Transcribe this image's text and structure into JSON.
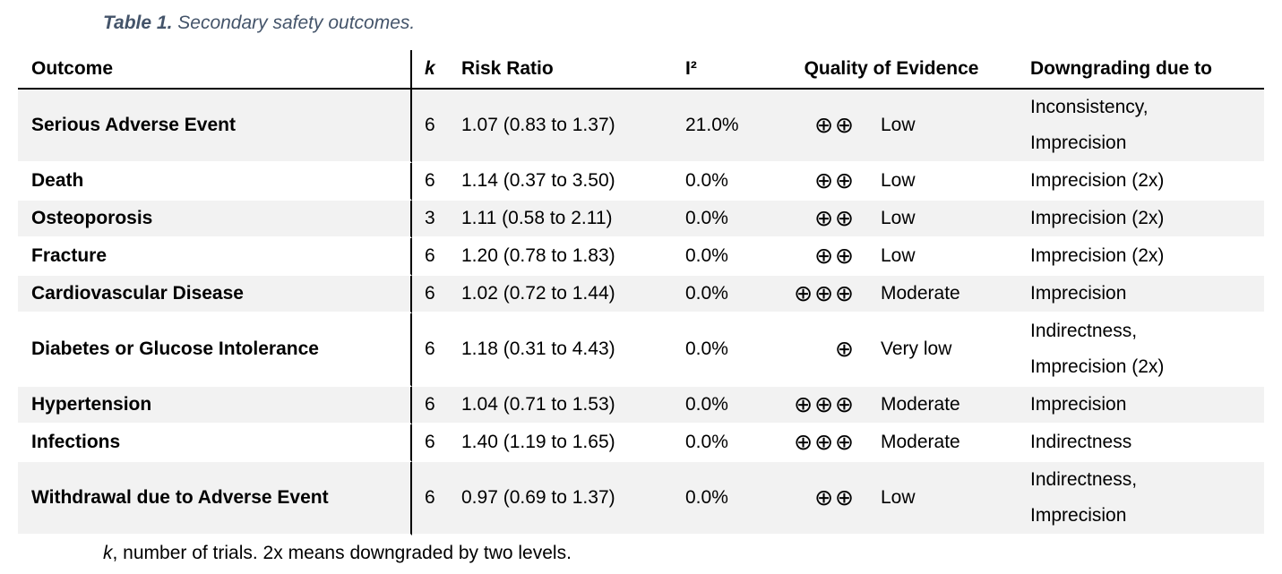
{
  "caption": {
    "label": "Table 1.",
    "text": " Secondary safety outcomes."
  },
  "table": {
    "columns": {
      "outcome": "Outcome",
      "k": "k",
      "risk_ratio": "Risk Ratio",
      "i2": "I²",
      "quality": "Quality of Evidence",
      "downgrading": "Downgrading due to"
    },
    "rows": [
      {
        "outcome": "Serious Adverse Event",
        "k": "6",
        "risk_ratio": "1.07 (0.83 to 1.37)",
        "i2": "21.0%",
        "quality_symbols": "⊕⊕",
        "quality_label": "Low",
        "downgrading_1": "Inconsistency,",
        "downgrading_2": "Imprecision"
      },
      {
        "outcome": "Death",
        "k": "6",
        "risk_ratio": "1.14 (0.37 to 3.50)",
        "i2": "0.0%",
        "quality_symbols": "⊕⊕",
        "quality_label": "Low",
        "downgrading_1": "Imprecision (2x)"
      },
      {
        "outcome": "Osteoporosis",
        "k": "3",
        "risk_ratio": "1.11 (0.58 to 2.11)",
        "i2": "0.0%",
        "quality_symbols": "⊕⊕",
        "quality_label": "Low",
        "downgrading_1": "Imprecision (2x)"
      },
      {
        "outcome": "Fracture",
        "k": "6",
        "risk_ratio": "1.20 (0.78 to 1.83)",
        "i2": "0.0%",
        "quality_symbols": "⊕⊕",
        "quality_label": "Low",
        "downgrading_1": "Imprecision (2x)"
      },
      {
        "outcome": "Cardiovascular Disease",
        "k": "6",
        "risk_ratio": "1.02 (0.72 to 1.44)",
        "i2": "0.0%",
        "quality_symbols": "⊕⊕⊕",
        "quality_label": "Moderate",
        "downgrading_1": "Imprecision"
      },
      {
        "outcome": "Diabetes or Glucose Intolerance",
        "k": "6",
        "risk_ratio": "1.18 (0.31 to 4.43)",
        "i2": "0.0%",
        "quality_symbols": "⊕",
        "quality_label": "Very low",
        "downgrading_1": "Indirectness,",
        "downgrading_2": "Imprecision (2x)"
      },
      {
        "outcome": "Hypertension",
        "k": "6",
        "risk_ratio": "1.04 (0.71 to 1.53)",
        "i2": "0.0%",
        "quality_symbols": "⊕⊕⊕",
        "quality_label": "Moderate",
        "downgrading_1": "Imprecision"
      },
      {
        "outcome": "Infections",
        "k": "6",
        "risk_ratio": "1.40 (1.19 to 1.65)",
        "i2": "0.0%",
        "quality_symbols": "⊕⊕⊕",
        "quality_label": "Moderate",
        "downgrading_1": "Indirectness"
      },
      {
        "outcome": "Withdrawal due to Adverse Event",
        "k": "6",
        "risk_ratio": "0.97 (0.69 to 1.37)",
        "i2": "0.0%",
        "quality_symbols": "⊕⊕",
        "quality_label": "Low",
        "downgrading_1": "Indirectness,",
        "downgrading_2": "Imprecision"
      }
    ]
  },
  "footnote": {
    "k_symbol": "k",
    "text": ", number of trials. 2x means downgraded by two levels."
  },
  "colors": {
    "stripe": "#f2f2f2",
    "caption": "#44546a",
    "rule": "#000000",
    "text": "#000000"
  }
}
